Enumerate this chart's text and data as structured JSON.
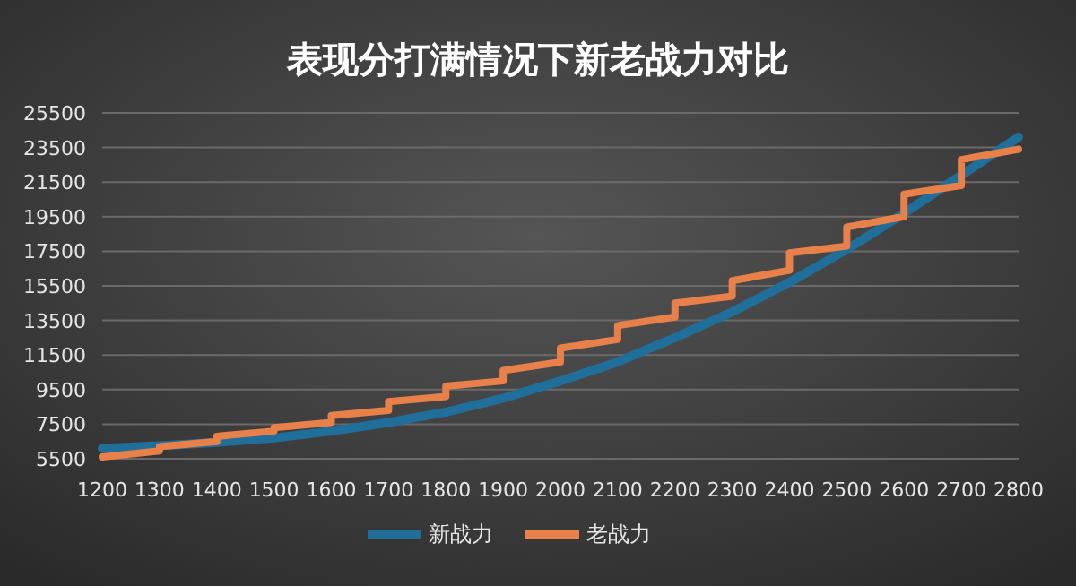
{
  "chart_data": {
    "type": "line",
    "title": "表现分打满情况下新老战力对比",
    "xlim": [
      1200,
      2800
    ],
    "xticks": [
      1200,
      1300,
      1400,
      1500,
      1600,
      1700,
      1800,
      1900,
      2000,
      2100,
      2200,
      2300,
      2400,
      2500,
      2600,
      2700,
      2800
    ],
    "ylim": [
      5500,
      25500
    ],
    "yticks": [
      5500,
      7500,
      9500,
      11500,
      13500,
      15500,
      17500,
      19500,
      21500,
      23500,
      25500
    ],
    "grid": "y",
    "legend": "bottom",
    "series": [
      {
        "name": "新战力",
        "color": "#1f6f9a",
        "x": [
          1200,
          1300,
          1400,
          1500,
          1600,
          1700,
          1800,
          1900,
          2000,
          2100,
          2200,
          2300,
          2400,
          2500,
          2600,
          2700,
          2800
        ],
        "values": [
          6100,
          6250,
          6450,
          6700,
          7100,
          7600,
          8200,
          9000,
          10000,
          11100,
          12500,
          14000,
          15700,
          17600,
          19700,
          21900,
          24100
        ]
      },
      {
        "name": "老战力",
        "color": "#e8804a",
        "x": [
          1200,
          1300,
          1300,
          1400,
          1400,
          1500,
          1500,
          1600,
          1600,
          1700,
          1700,
          1800,
          1800,
          1900,
          1900,
          2000,
          2000,
          2100,
          2100,
          2200,
          2200,
          2300,
          2300,
          2400,
          2400,
          2500,
          2500,
          2600,
          2600,
          2700,
          2700,
          2800
        ],
        "values": [
          5600,
          5950,
          6200,
          6500,
          6800,
          7100,
          7300,
          7600,
          8000,
          8300,
          8800,
          9100,
          9700,
          10000,
          10600,
          11100,
          11900,
          12400,
          13200,
          13700,
          14500,
          14900,
          15800,
          16400,
          17400,
          17800,
          18900,
          19500,
          20800,
          21300,
          22800,
          23400
        ]
      }
    ]
  }
}
